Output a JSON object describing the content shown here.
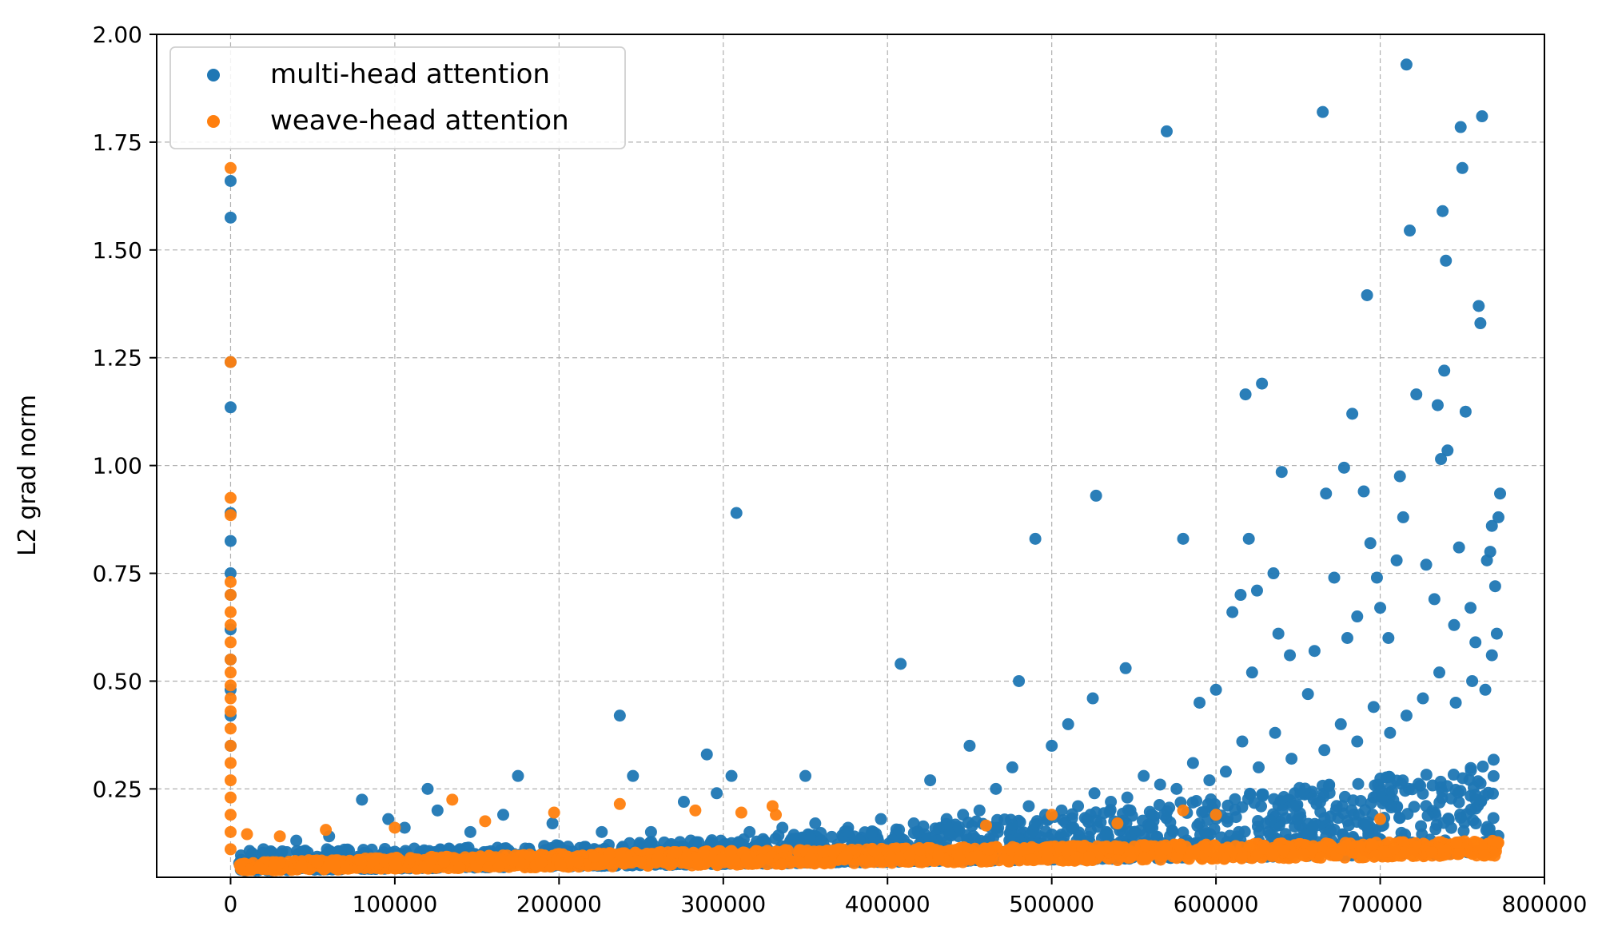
{
  "chart_data": {
    "type": "scatter",
    "title": "",
    "xlabel": "",
    "ylabel": "L2 grad norm",
    "xlim": [
      -45000,
      800000
    ],
    "ylim": [
      0.045,
      2.0
    ],
    "xticks": [
      0,
      100000,
      200000,
      300000,
      400000,
      500000,
      600000,
      700000,
      800000
    ],
    "xtick_labels": [
      "0",
      "100000",
      "200000",
      "300000",
      "400000",
      "500000",
      "600000",
      "700000",
      "800000"
    ],
    "yticks": [
      0.25,
      0.5,
      0.75,
      1.0,
      1.25,
      1.5,
      1.75,
      2.0
    ],
    "ytick_labels": [
      "0.25",
      "0.50",
      "0.75",
      "1.00",
      "1.25",
      "1.50",
      "1.75",
      "2.00"
    ],
    "grid": true,
    "legend_position": "top-left",
    "colors": {
      "multi-head attention": "#1f77b4",
      "weave-head attention": "#ff7f0e"
    },
    "series": [
      {
        "name": "multi-head attention",
        "color": "#1f77b4",
        "points": [
          [
            0,
            1.66
          ],
          [
            0,
            1.575
          ],
          [
            0,
            1.24
          ],
          [
            0,
            1.135
          ],
          [
            0,
            0.89
          ],
          [
            0,
            0.825
          ],
          [
            0,
            0.75
          ],
          [
            0,
            0.7
          ],
          [
            0,
            0.62
          ],
          [
            0,
            0.55
          ],
          [
            0,
            0.48
          ],
          [
            0,
            0.42
          ],
          [
            0,
            0.35
          ],
          [
            80000,
            0.225
          ],
          [
            120000,
            0.25
          ],
          [
            175000,
            0.28
          ],
          [
            237000,
            0.42
          ],
          [
            245000,
            0.28
          ],
          [
            290000,
            0.33
          ],
          [
            305000,
            0.28
          ],
          [
            308000,
            0.89
          ],
          [
            350000,
            0.28
          ],
          [
            408000,
            0.54
          ],
          [
            450000,
            0.35
          ],
          [
            480000,
            0.5
          ],
          [
            490000,
            0.83
          ],
          [
            500000,
            0.35
          ],
          [
            510000,
            0.4
          ],
          [
            525000,
            0.46
          ],
          [
            527000,
            0.93
          ],
          [
            545000,
            0.53
          ],
          [
            570000,
            1.775
          ],
          [
            580000,
            0.83
          ],
          [
            590000,
            0.45
          ],
          [
            600000,
            0.48
          ],
          [
            610000,
            0.66
          ],
          [
            615000,
            0.7
          ],
          [
            618000,
            1.165
          ],
          [
            620000,
            0.83
          ],
          [
            622000,
            0.52
          ],
          [
            625000,
            0.71
          ],
          [
            628000,
            1.19
          ],
          [
            635000,
            0.75
          ],
          [
            638000,
            0.61
          ],
          [
            640000,
            0.985
          ],
          [
            645000,
            0.56
          ],
          [
            660000,
            0.57
          ],
          [
            665000,
            1.82
          ],
          [
            667000,
            0.935
          ],
          [
            672000,
            0.74
          ],
          [
            678000,
            0.995
          ],
          [
            680000,
            0.6
          ],
          [
            683000,
            1.12
          ],
          [
            686000,
            0.65
          ],
          [
            690000,
            0.94
          ],
          [
            692000,
            1.395
          ],
          [
            694000,
            0.82
          ],
          [
            698000,
            0.74
          ],
          [
            700000,
            0.67
          ],
          [
            705000,
            0.6
          ],
          [
            710000,
            0.78
          ],
          [
            712000,
            0.975
          ],
          [
            714000,
            0.88
          ],
          [
            716000,
            1.93
          ],
          [
            718000,
            1.545
          ],
          [
            722000,
            1.165
          ],
          [
            728000,
            0.77
          ],
          [
            733000,
            0.69
          ],
          [
            735000,
            1.14
          ],
          [
            737000,
            1.015
          ],
          [
            738000,
            1.59
          ],
          [
            739000,
            1.22
          ],
          [
            740000,
            1.475
          ],
          [
            741000,
            1.035
          ],
          [
            745000,
            0.63
          ],
          [
            748000,
            0.81
          ],
          [
            749000,
            1.785
          ],
          [
            750000,
            1.69
          ],
          [
            752000,
            1.125
          ],
          [
            755000,
            0.67
          ],
          [
            758000,
            0.59
          ],
          [
            760000,
            1.37
          ],
          [
            761000,
            1.33
          ],
          [
            762000,
            1.81
          ],
          [
            765000,
            0.78
          ],
          [
            767000,
            0.8
          ],
          [
            768000,
            0.86
          ],
          [
            770000,
            0.72
          ],
          [
            771000,
            0.61
          ],
          [
            772000,
            0.88
          ],
          [
            773000,
            0.935
          ],
          [
            768000,
            0.56
          ],
          [
            764000,
            0.48
          ],
          [
            756000,
            0.5
          ],
          [
            746000,
            0.45
          ],
          [
            736000,
            0.52
          ],
          [
            726000,
            0.46
          ],
          [
            716000,
            0.42
          ],
          [
            706000,
            0.38
          ],
          [
            696000,
            0.44
          ],
          [
            686000,
            0.36
          ],
          [
            676000,
            0.4
          ],
          [
            666000,
            0.34
          ],
          [
            656000,
            0.47
          ],
          [
            646000,
            0.32
          ],
          [
            636000,
            0.38
          ],
          [
            626000,
            0.3
          ],
          [
            616000,
            0.36
          ],
          [
            606000,
            0.29
          ],
          [
            596000,
            0.27
          ],
          [
            586000,
            0.31
          ],
          [
            576000,
            0.25
          ],
          [
            566000,
            0.26
          ],
          [
            556000,
            0.28
          ],
          [
            546000,
            0.23
          ],
          [
            536000,
            0.22
          ],
          [
            526000,
            0.24
          ],
          [
            516000,
            0.21
          ],
          [
            506000,
            0.2
          ],
          [
            496000,
            0.19
          ],
          [
            486000,
            0.21
          ],
          [
            476000,
            0.3
          ],
          [
            466000,
            0.25
          ],
          [
            456000,
            0.2
          ],
          [
            446000,
            0.19
          ],
          [
            436000,
            0.18
          ],
          [
            426000,
            0.27
          ],
          [
            416000,
            0.17
          ],
          [
            396000,
            0.18
          ],
          [
            376000,
            0.16
          ],
          [
            356000,
            0.17
          ],
          [
            336000,
            0.16
          ],
          [
            316000,
            0.15
          ],
          [
            296000,
            0.24
          ],
          [
            276000,
            0.22
          ],
          [
            256000,
            0.15
          ],
          [
            226000,
            0.15
          ],
          [
            196000,
            0.17
          ],
          [
            166000,
            0.19
          ],
          [
            146000,
            0.15
          ],
          [
            126000,
            0.2
          ],
          [
            106000,
            0.16
          ],
          [
            96000,
            0.18
          ],
          [
            60000,
            0.14
          ],
          [
            40000,
            0.13
          ],
          [
            20000,
            0.11
          ]
        ]
      },
      {
        "name": "weave-head attention",
        "color": "#ff7f0e",
        "points": [
          [
            0,
            1.69
          ],
          [
            0,
            1.24
          ],
          [
            0,
            0.925
          ],
          [
            0,
            0.885
          ],
          [
            0,
            0.73
          ],
          [
            0,
            0.7
          ],
          [
            0,
            0.66
          ],
          [
            0,
            0.63
          ],
          [
            0,
            0.59
          ],
          [
            0,
            0.55
          ],
          [
            0,
            0.52
          ],
          [
            0,
            0.49
          ],
          [
            0,
            0.46
          ],
          [
            0,
            0.43
          ],
          [
            0,
            0.39
          ],
          [
            0,
            0.35
          ],
          [
            0,
            0.31
          ],
          [
            0,
            0.27
          ],
          [
            0,
            0.23
          ],
          [
            0,
            0.19
          ],
          [
            0,
            0.15
          ],
          [
            0,
            0.11
          ],
          [
            10000,
            0.145
          ],
          [
            30000,
            0.14
          ],
          [
            58000,
            0.155
          ],
          [
            100000,
            0.16
          ],
          [
            135000,
            0.225
          ],
          [
            155000,
            0.175
          ],
          [
            197000,
            0.195
          ],
          [
            237000,
            0.215
          ],
          [
            283000,
            0.2
          ],
          [
            311000,
            0.195
          ],
          [
            330000,
            0.21
          ],
          [
            332000,
            0.19
          ],
          [
            460000,
            0.165
          ],
          [
            500000,
            0.19
          ],
          [
            540000,
            0.17
          ],
          [
            580000,
            0.2
          ],
          [
            600000,
            0.19
          ],
          [
            700000,
            0.18
          ]
        ]
      }
    ],
    "dense_bands": [
      {
        "series": "multi-head attention",
        "x_range": [
          5000,
          772000
        ],
        "lower_start": 0.06,
        "lower_end": 0.1,
        "upper_start": 0.11,
        "upper_end": 0.32
      },
      {
        "series": "weave-head attention",
        "x_range": [
          5000,
          772000
        ],
        "lower_start": 0.06,
        "lower_end": 0.095,
        "upper_start": 0.075,
        "upper_end": 0.13
      }
    ]
  }
}
